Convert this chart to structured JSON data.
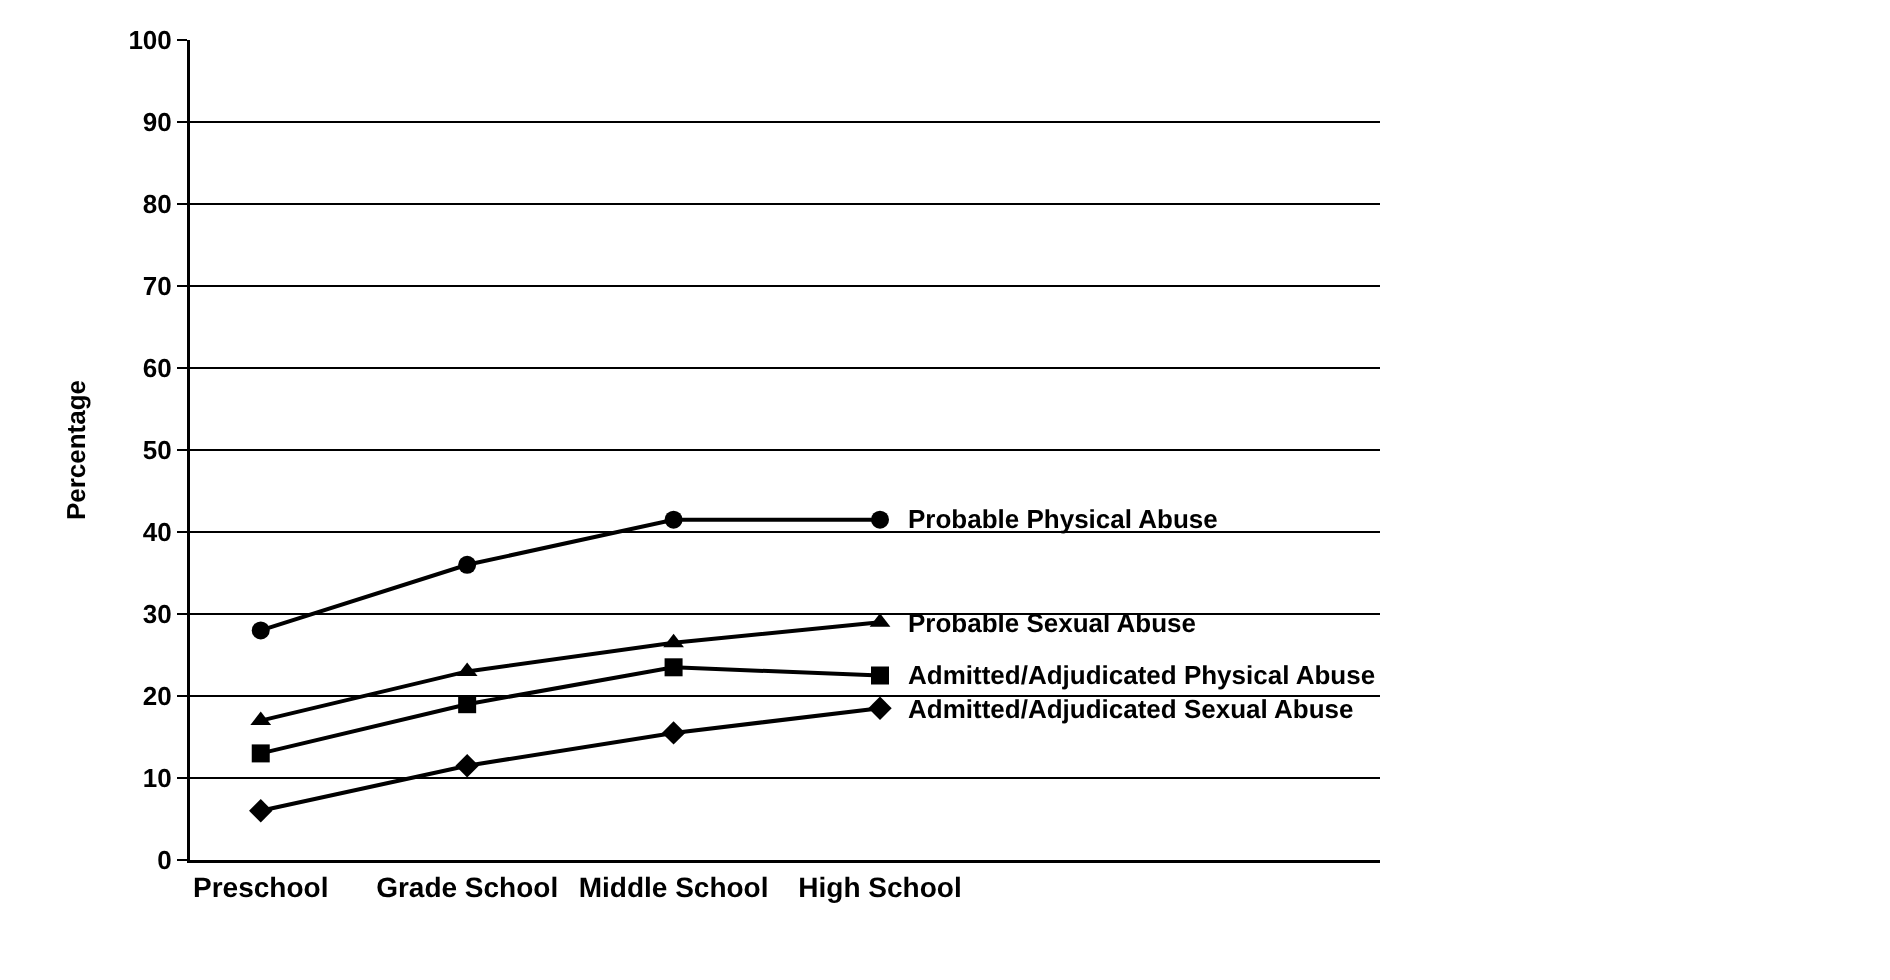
{
  "chart_data": {
    "type": "line",
    "ylabel": "Percentage",
    "categories": [
      "Preschool",
      "Grade School",
      "Middle School",
      "High School"
    ],
    "series": [
      {
        "name": "Probable Physical Abuse",
        "color": "#000000",
        "marker": "circle",
        "values": [
          28,
          36,
          41.5,
          41.5
        ]
      },
      {
        "name": "Probable Sexual Abuse",
        "color": "#000000",
        "marker": "triangle",
        "values": [
          17,
          23,
          26.5,
          29
        ]
      },
      {
        "name": "Admitted/Adjudicated Physical Abuse",
        "color": "#000000",
        "marker": "square",
        "values": [
          13,
          19,
          23.5,
          22.5
        ]
      },
      {
        "name": "Admitted/Adjudicated Sexual Abuse",
        "color": "#000000",
        "marker": "diamond",
        "values": [
          6,
          11.5,
          15.5,
          18.5
        ]
      }
    ],
    "ylim": [
      0,
      100
    ],
    "yticks": [
      0,
      10,
      20,
      30,
      40,
      50,
      60,
      70,
      80,
      90,
      100
    ],
    "grid": "y",
    "legend": false
  }
}
